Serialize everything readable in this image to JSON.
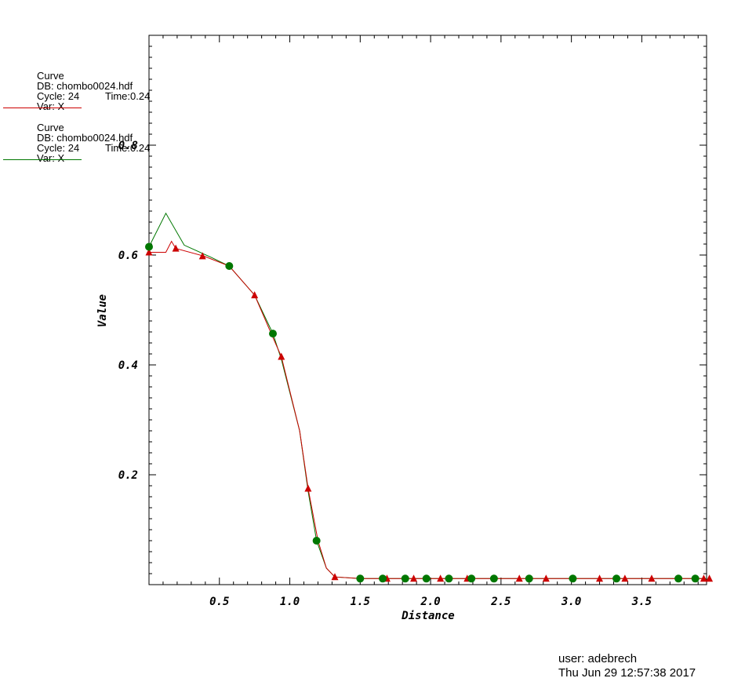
{
  "legend": [
    {
      "title": "Curve",
      "db": "DB: chombo0024.hdf",
      "cycle": "Cycle: 24",
      "time": "Time:0.24",
      "var": "Var: X",
      "color": "#cc0000"
    },
    {
      "title": "Curve",
      "db": "DB: chombo0024.hdf",
      "cycle": "Cycle: 24",
      "time": "Time:0.24",
      "var": "Var: X",
      "color": "#007700"
    }
  ],
  "user_info": {
    "user": "user: adebrech",
    "date": "Thu Jun 29 12:57:38 2017"
  },
  "chart_data": {
    "type": "line",
    "title": "",
    "xlabel": "Distance",
    "ylabel": "Value",
    "xlim": [
      0.0,
      3.96
    ],
    "ylim": [
      0.0,
      1.0
    ],
    "xticks": [
      "0.5",
      "1.0",
      "1.5",
      "2.0",
      "2.5",
      "3.0",
      "3.5"
    ],
    "xtick_values": [
      0.5,
      1.0,
      1.5,
      2.0,
      2.5,
      3.0,
      3.5
    ],
    "yticks": [
      "0.2",
      "0.4",
      "0.6",
      "0.8"
    ],
    "ytick_values": [
      0.2,
      0.4,
      0.6,
      0.8
    ],
    "grid": false,
    "series": [
      {
        "color": "#cc0000",
        "marker": "triangle",
        "x": [
          0.0,
          0.12,
          0.16,
          0.19,
          0.39,
          0.57,
          0.75,
          0.88,
          0.94,
          1.07,
          1.13,
          1.2,
          1.26,
          1.32,
          1.5,
          1.69,
          1.88,
          2.07,
          2.26,
          2.45,
          2.63,
          2.82,
          3.01,
          3.2,
          3.38,
          3.57,
          3.76,
          3.94
        ],
        "y": [
          0.605,
          0.605,
          0.625,
          0.612,
          0.598,
          0.58,
          0.527,
          0.45,
          0.415,
          0.28,
          0.175,
          0.08,
          0.03,
          0.014,
          0.011,
          0.011,
          0.011,
          0.011,
          0.011,
          0.011,
          0.011,
          0.011,
          0.011,
          0.011,
          0.011,
          0.011,
          0.011,
          0.011
        ],
        "marker_x": [
          0.0,
          0.19,
          0.38,
          0.75,
          0.94,
          1.13,
          1.32,
          1.69,
          1.88,
          2.07,
          2.26,
          2.63,
          2.82,
          3.2,
          3.38,
          3.57,
          3.94,
          3.98
        ],
        "marker_y": [
          0.605,
          0.612,
          0.598,
          0.527,
          0.415,
          0.175,
          0.014,
          0.011,
          0.011,
          0.011,
          0.011,
          0.011,
          0.011,
          0.011,
          0.011,
          0.011,
          0.011,
          0.011
        ]
      },
      {
        "color": "#007700",
        "marker": "circle",
        "x": [
          0.0,
          0.12,
          0.25,
          0.44,
          0.57,
          0.75,
          0.88,
          0.94,
          1.07,
          1.13,
          1.19,
          1.26,
          1.32,
          1.5,
          1.66,
          1.82,
          1.97,
          2.13,
          2.29,
          2.45,
          2.7,
          3.01,
          3.32,
          3.76,
          3.88,
          3.96
        ],
        "y": [
          0.615,
          0.676,
          0.618,
          0.596,
          0.58,
          0.527,
          0.457,
          0.41,
          0.28,
          0.17,
          0.08,
          0.03,
          0.014,
          0.011,
          0.011,
          0.011,
          0.011,
          0.011,
          0.011,
          0.011,
          0.011,
          0.011,
          0.011,
          0.011,
          0.011,
          0.011
        ],
        "marker_x": [
          0.0,
          0.57,
          0.88,
          1.19,
          1.5,
          1.66,
          1.82,
          1.97,
          2.13,
          2.29,
          2.45,
          2.7,
          3.01,
          3.32,
          3.76,
          3.88
        ],
        "marker_y": [
          0.615,
          0.58,
          0.457,
          0.08,
          0.011,
          0.011,
          0.011,
          0.011,
          0.011,
          0.011,
          0.011,
          0.011,
          0.011,
          0.011,
          0.011,
          0.011
        ]
      }
    ]
  }
}
